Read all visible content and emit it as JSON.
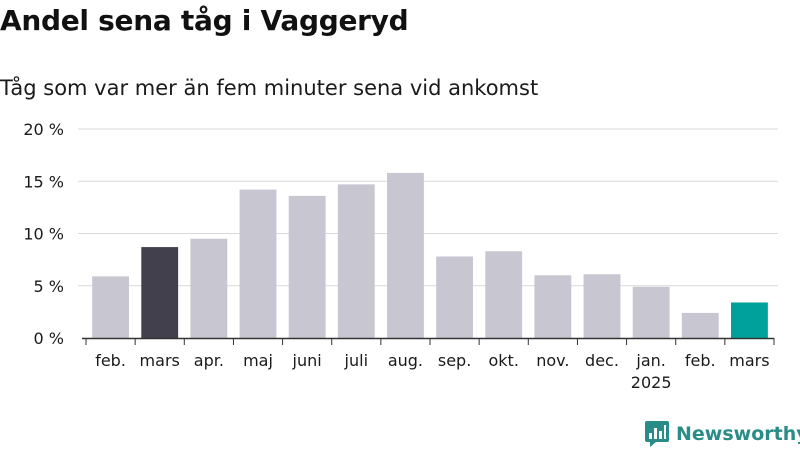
{
  "title": "Andel sena tåg i Vaggeryd",
  "subtitle": "Tåg som var mer än fem minuter sena vid ankomst",
  "brand": "Newsworthy",
  "colors": {
    "default_bar": "#c8c6d1",
    "highlight_prev": "#42404d",
    "highlight_current": "#00a19a",
    "grid": "#d9d9d9",
    "axis": "#333333",
    "text": "#1a1a1a",
    "brand": "#2a8c86"
  },
  "chart_data": {
    "type": "bar",
    "title": "Andel sena tåg i Vaggeryd",
    "subtitle": "Tåg som var mer än fem minuter sena vid ankomst",
    "xlabel": "",
    "ylabel": "",
    "categories": [
      "feb.",
      "mars",
      "apr.",
      "maj",
      "juni",
      "juli",
      "aug.",
      "sep.",
      "okt.",
      "nov.",
      "dec.",
      "jan.",
      "feb.",
      "mars"
    ],
    "category_sublabels": [
      "",
      "",
      "",
      "",
      "",
      "",
      "",
      "",
      "",
      "",
      "",
      "2025",
      "",
      ""
    ],
    "values": [
      5.9,
      8.7,
      9.5,
      14.2,
      13.6,
      14.7,
      15.8,
      7.8,
      8.3,
      6.0,
      6.1,
      4.9,
      2.4,
      3.4
    ],
    "highlight": [
      "default",
      "prev",
      "default",
      "default",
      "default",
      "default",
      "default",
      "default",
      "default",
      "default",
      "default",
      "default",
      "default",
      "current"
    ],
    "yticks": [
      0,
      5,
      10,
      15,
      20
    ],
    "ytick_labels": [
      "0 %",
      "5 %",
      "10 %",
      "15 %",
      "20 %"
    ],
    "ylim": [
      0,
      20
    ],
    "grid": true
  }
}
